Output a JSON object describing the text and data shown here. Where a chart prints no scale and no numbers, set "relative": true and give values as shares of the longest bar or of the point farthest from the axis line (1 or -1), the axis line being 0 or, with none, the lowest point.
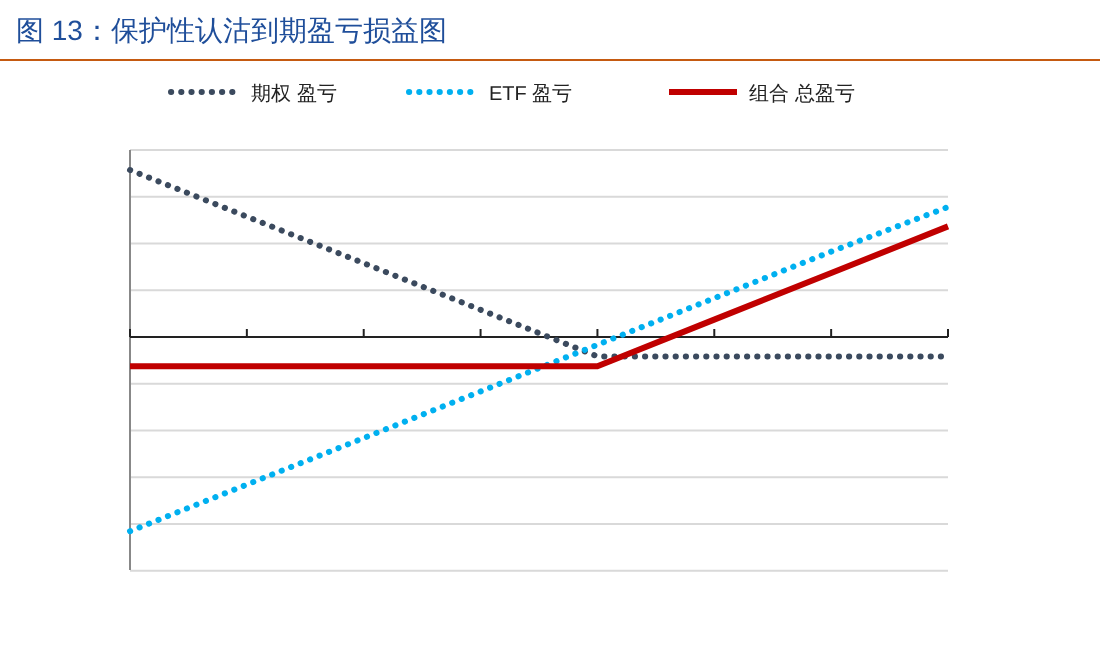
{
  "chart_data": {
    "type": "line",
    "title": "图 13：保护性认沽到期盈亏损益图",
    "relative": true,
    "categories": [
      null,
      null,
      null,
      null,
      null,
      null,
      null,
      null
    ],
    "legend": "top",
    "grid": "y",
    "series": [
      {
        "name": "期权 盈亏",
        "color": "#3b4a5e",
        "line_style": "dotted",
        "values": [
          0.86,
          0.62,
          0.38,
          0.14,
          -0.1,
          -0.1,
          -0.1,
          -0.1
        ]
      },
      {
        "name": "ETF 盈亏",
        "color": "#00b0f0",
        "line_style": "dotted",
        "values": [
          -1,
          -0.76,
          -0.52,
          -0.28,
          -0.04,
          0.2,
          0.44,
          0.67
        ]
      },
      {
        "name": "组合 总盈亏",
        "color": "#c00000",
        "line_style": "solid",
        "values": [
          -0.15,
          -0.15,
          -0.15,
          -0.15,
          -0.15,
          0.09,
          0.33,
          0.57
        ]
      }
    ]
  }
}
